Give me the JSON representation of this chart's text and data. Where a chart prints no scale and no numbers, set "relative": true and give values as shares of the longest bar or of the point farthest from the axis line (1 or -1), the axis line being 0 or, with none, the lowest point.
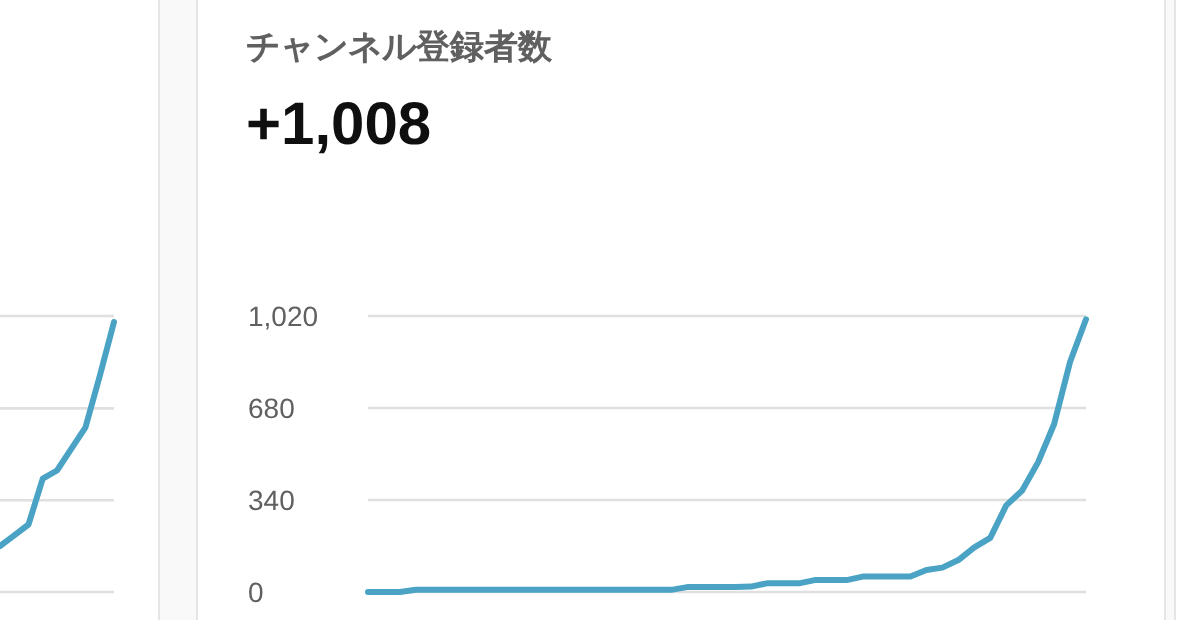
{
  "chart_data": [
    {
      "type": "line",
      "relative": true,
      "ref_lines": [
        {
          "axis": "y",
          "value": 0.34,
          "color": "#e0e0e0"
        },
        {
          "axis": "y",
          "value": 0.68,
          "color": "#e0e0e0"
        }
      ],
      "categories": [
        null,
        null,
        null,
        null,
        null,
        null,
        null,
        null,
        null
      ],
      "series": [
        {
          "color": "#4aa3c4",
          "values": [
            0.17,
            0.21,
            0.25,
            0.42,
            0.45,
            0.53,
            0.61,
            0.8,
            1
          ]
        }
      ]
    },
    {
      "type": "line",
      "title": "チャンネル登録者数",
      "subtitle": "+1,008",
      "grid": "y",
      "ylim": [
        0,
        1020
      ],
      "yticks": [
        0,
        {
          "value": 340,
          "label": "340"
        },
        {
          "value": 680,
          "label": "680"
        },
        {
          "value": 1020,
          "label": "1,020"
        }
      ],
      "categories": [
        null,
        null,
        null,
        null,
        null,
        null,
        null,
        null,
        null,
        null,
        null,
        null,
        null,
        null,
        null,
        null,
        null,
        null,
        null,
        null,
        null,
        null,
        null,
        null,
        null,
        null,
        null,
        null,
        null,
        null,
        null,
        null,
        null,
        null,
        null,
        null,
        null,
        null,
        null,
        null,
        null,
        null,
        null,
        null,
        null,
        null
      ],
      "series": [
        {
          "color": "#4aa3c4",
          "values": [
            0,
            0,
            0,
            8,
            8,
            8,
            8,
            8,
            8,
            8,
            8,
            8,
            8,
            8,
            8,
            8,
            8,
            8,
            8,
            8,
            18,
            18,
            18,
            18,
            20,
            32,
            32,
            32,
            44,
            44,
            44,
            57,
            57,
            57,
            57,
            81,
            90,
            118,
            165,
            200,
            320,
            375,
            480,
            620,
            850,
            1008
          ]
        }
      ]
    }
  ]
}
